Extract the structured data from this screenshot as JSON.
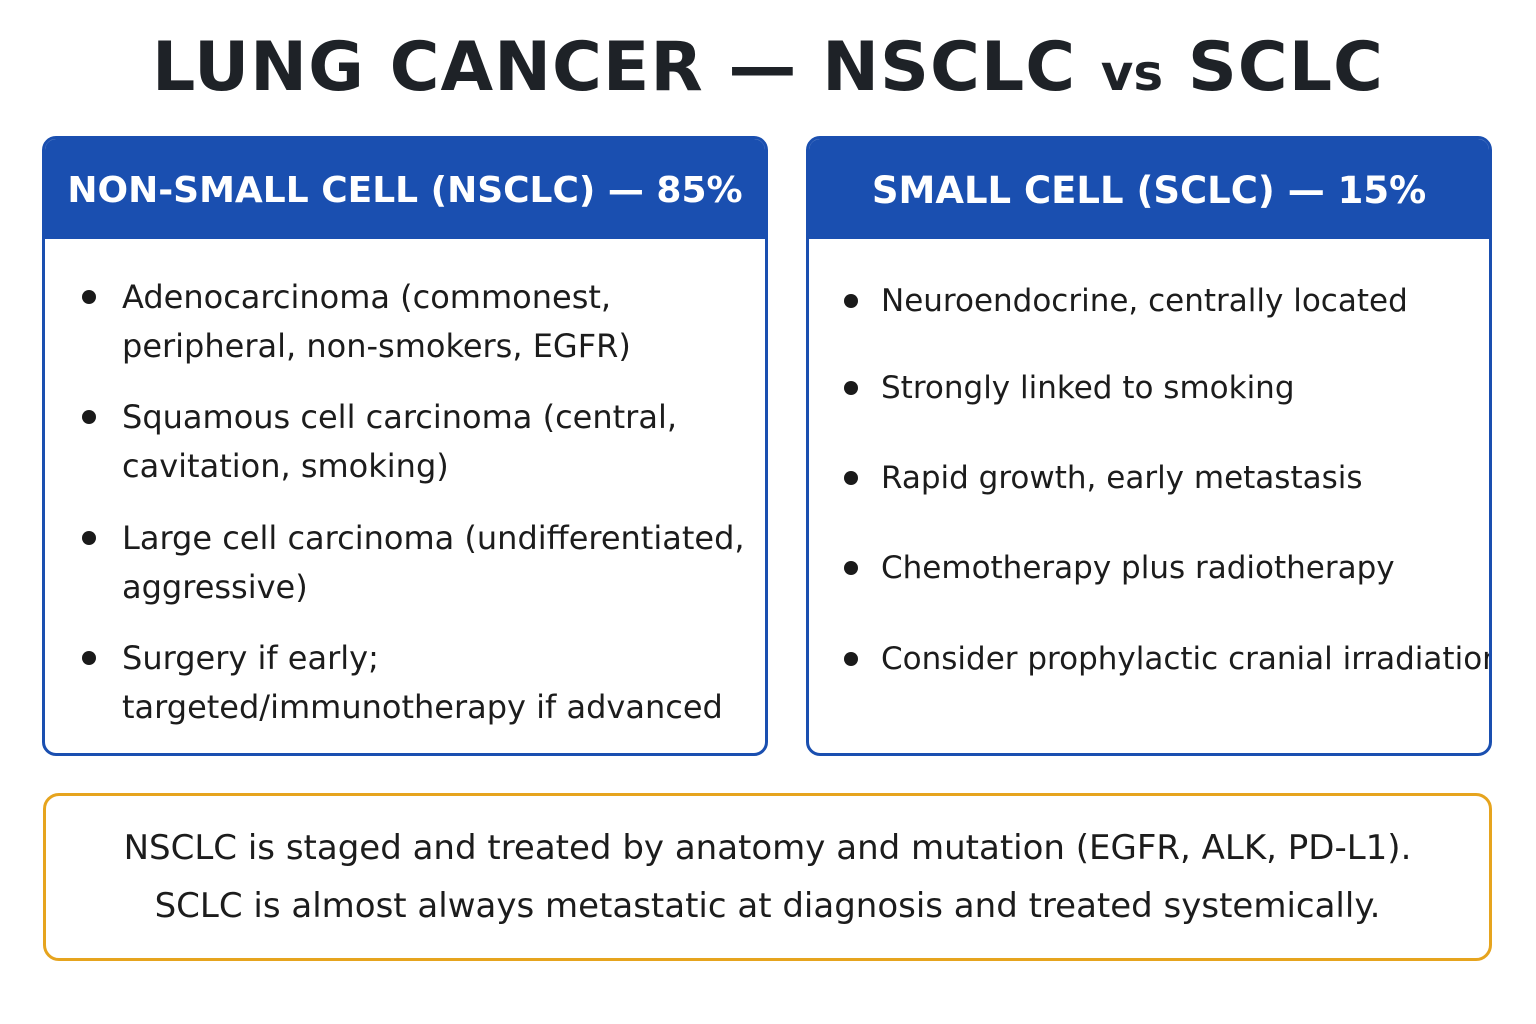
{
  "title": {
    "main_left": "LUNG CANCER — NSCLC ",
    "vs": "vs",
    "main_right": " SCLC"
  },
  "nsclc": {
    "header": "NON-SMALL CELL (NSCLC) — 85%",
    "bullets": [
      "Adenocarcinoma (commonest, peripheral, non-smokers, EGFR)",
      "Squamous cell carcinoma (central, cavitation, smoking)",
      "Large cell carcinoma (undifferentiated, aggressive)",
      "Surgery if early; targeted/immunotherapy if advanced"
    ]
  },
  "sclc": {
    "header": "SMALL CELL (SCLC) — 15%",
    "bullets": [
      "Neuroendocrine, centrally located",
      "Strongly linked to smoking",
      "Rapid growth, early metastasis",
      "Chemotherapy plus radiotherapy",
      "Consider prophylactic cranial irradiation"
    ]
  },
  "summary": {
    "line1": "NSCLC is staged and treated by anatomy and mutation  (EGFR, ALK, PD-L1).",
    "line2": "SCLC is almost always metastatic at diagnosis and treated systemically."
  },
  "colors": {
    "header_blue": "#1a4fb0",
    "note_border": "#e6a41e",
    "title_text": "#1e2227"
  }
}
